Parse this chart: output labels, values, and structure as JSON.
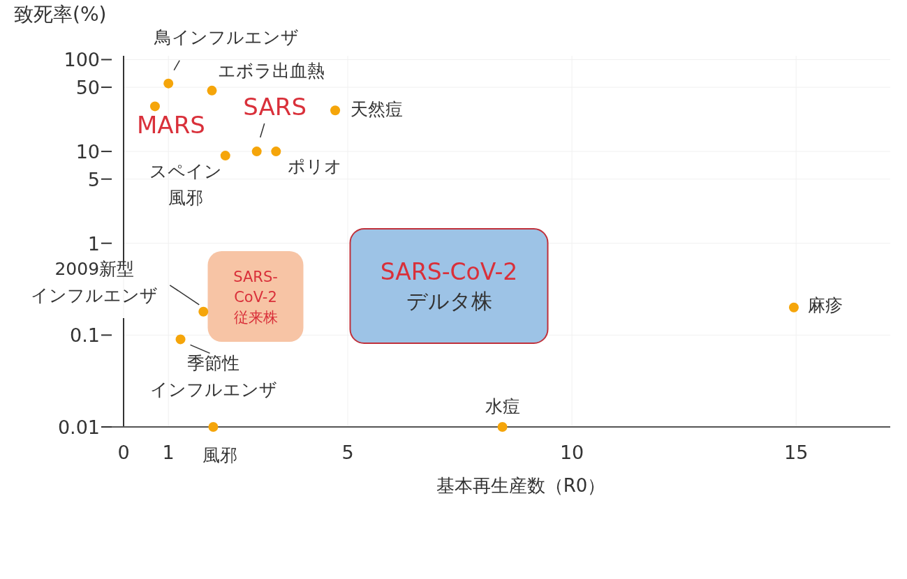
{
  "chart_data": {
    "type": "scatter",
    "ylabel": "致死率(%)",
    "xlabel": "基本再生産数（R0）",
    "x": [
      1.0,
      0.7,
      1.97,
      4.72,
      2.27,
      2.97,
      3.4,
      1.78,
      1.27,
      2.0,
      8.45,
      14.95
    ],
    "values": [
      55,
      31,
      46,
      28,
      9,
      10,
      10,
      0.18,
      0.09,
      0.01,
      0.01,
      0.2
    ],
    "color": "#f5a50a",
    "marker": "circle",
    "log": "y",
    "grid": true,
    "xlim": [
      0,
      17.1
    ],
    "ylim": [
      0.01,
      110
    ],
    "xticks": [
      0,
      1,
      5,
      10,
      15
    ],
    "yticks": [
      0.01,
      0.1,
      1,
      5,
      10,
      50,
      100
    ],
    "annotations": [
      {
        "text": "鳥インフルエンザ",
        "x": 1.0,
        "y": 55
      },
      {
        "text": "MARS",
        "x": 0.7,
        "y": 31
      },
      {
        "text": "エボラ出血熱",
        "x": 1.97,
        "y": 46
      },
      {
        "text": "天然痘",
        "x": 4.72,
        "y": 28
      },
      {
        "text": "スペイン風邪",
        "x": 2.27,
        "y": 9
      },
      {
        "text": "SARS",
        "x": 2.97,
        "y": 10
      },
      {
        "text": "ポリオ",
        "x": 3.4,
        "y": 10
      },
      {
        "text": "2009新型インフルエンザ",
        "x": 1.78,
        "y": 0.18
      },
      {
        "text": "季節性インフルエンザ",
        "x": 1.27,
        "y": 0.09
      },
      {
        "text": "風邪",
        "x": 2.0,
        "y": 0.01
      },
      {
        "text": "水痘",
        "x": 8.45,
        "y": 0.01
      },
      {
        "text": "麻疹",
        "x": 14.95,
        "y": 0.2
      },
      "SARS-CoV-2従来株",
      "SARS-CoV-2デルタ株"
    ]
  }
}
